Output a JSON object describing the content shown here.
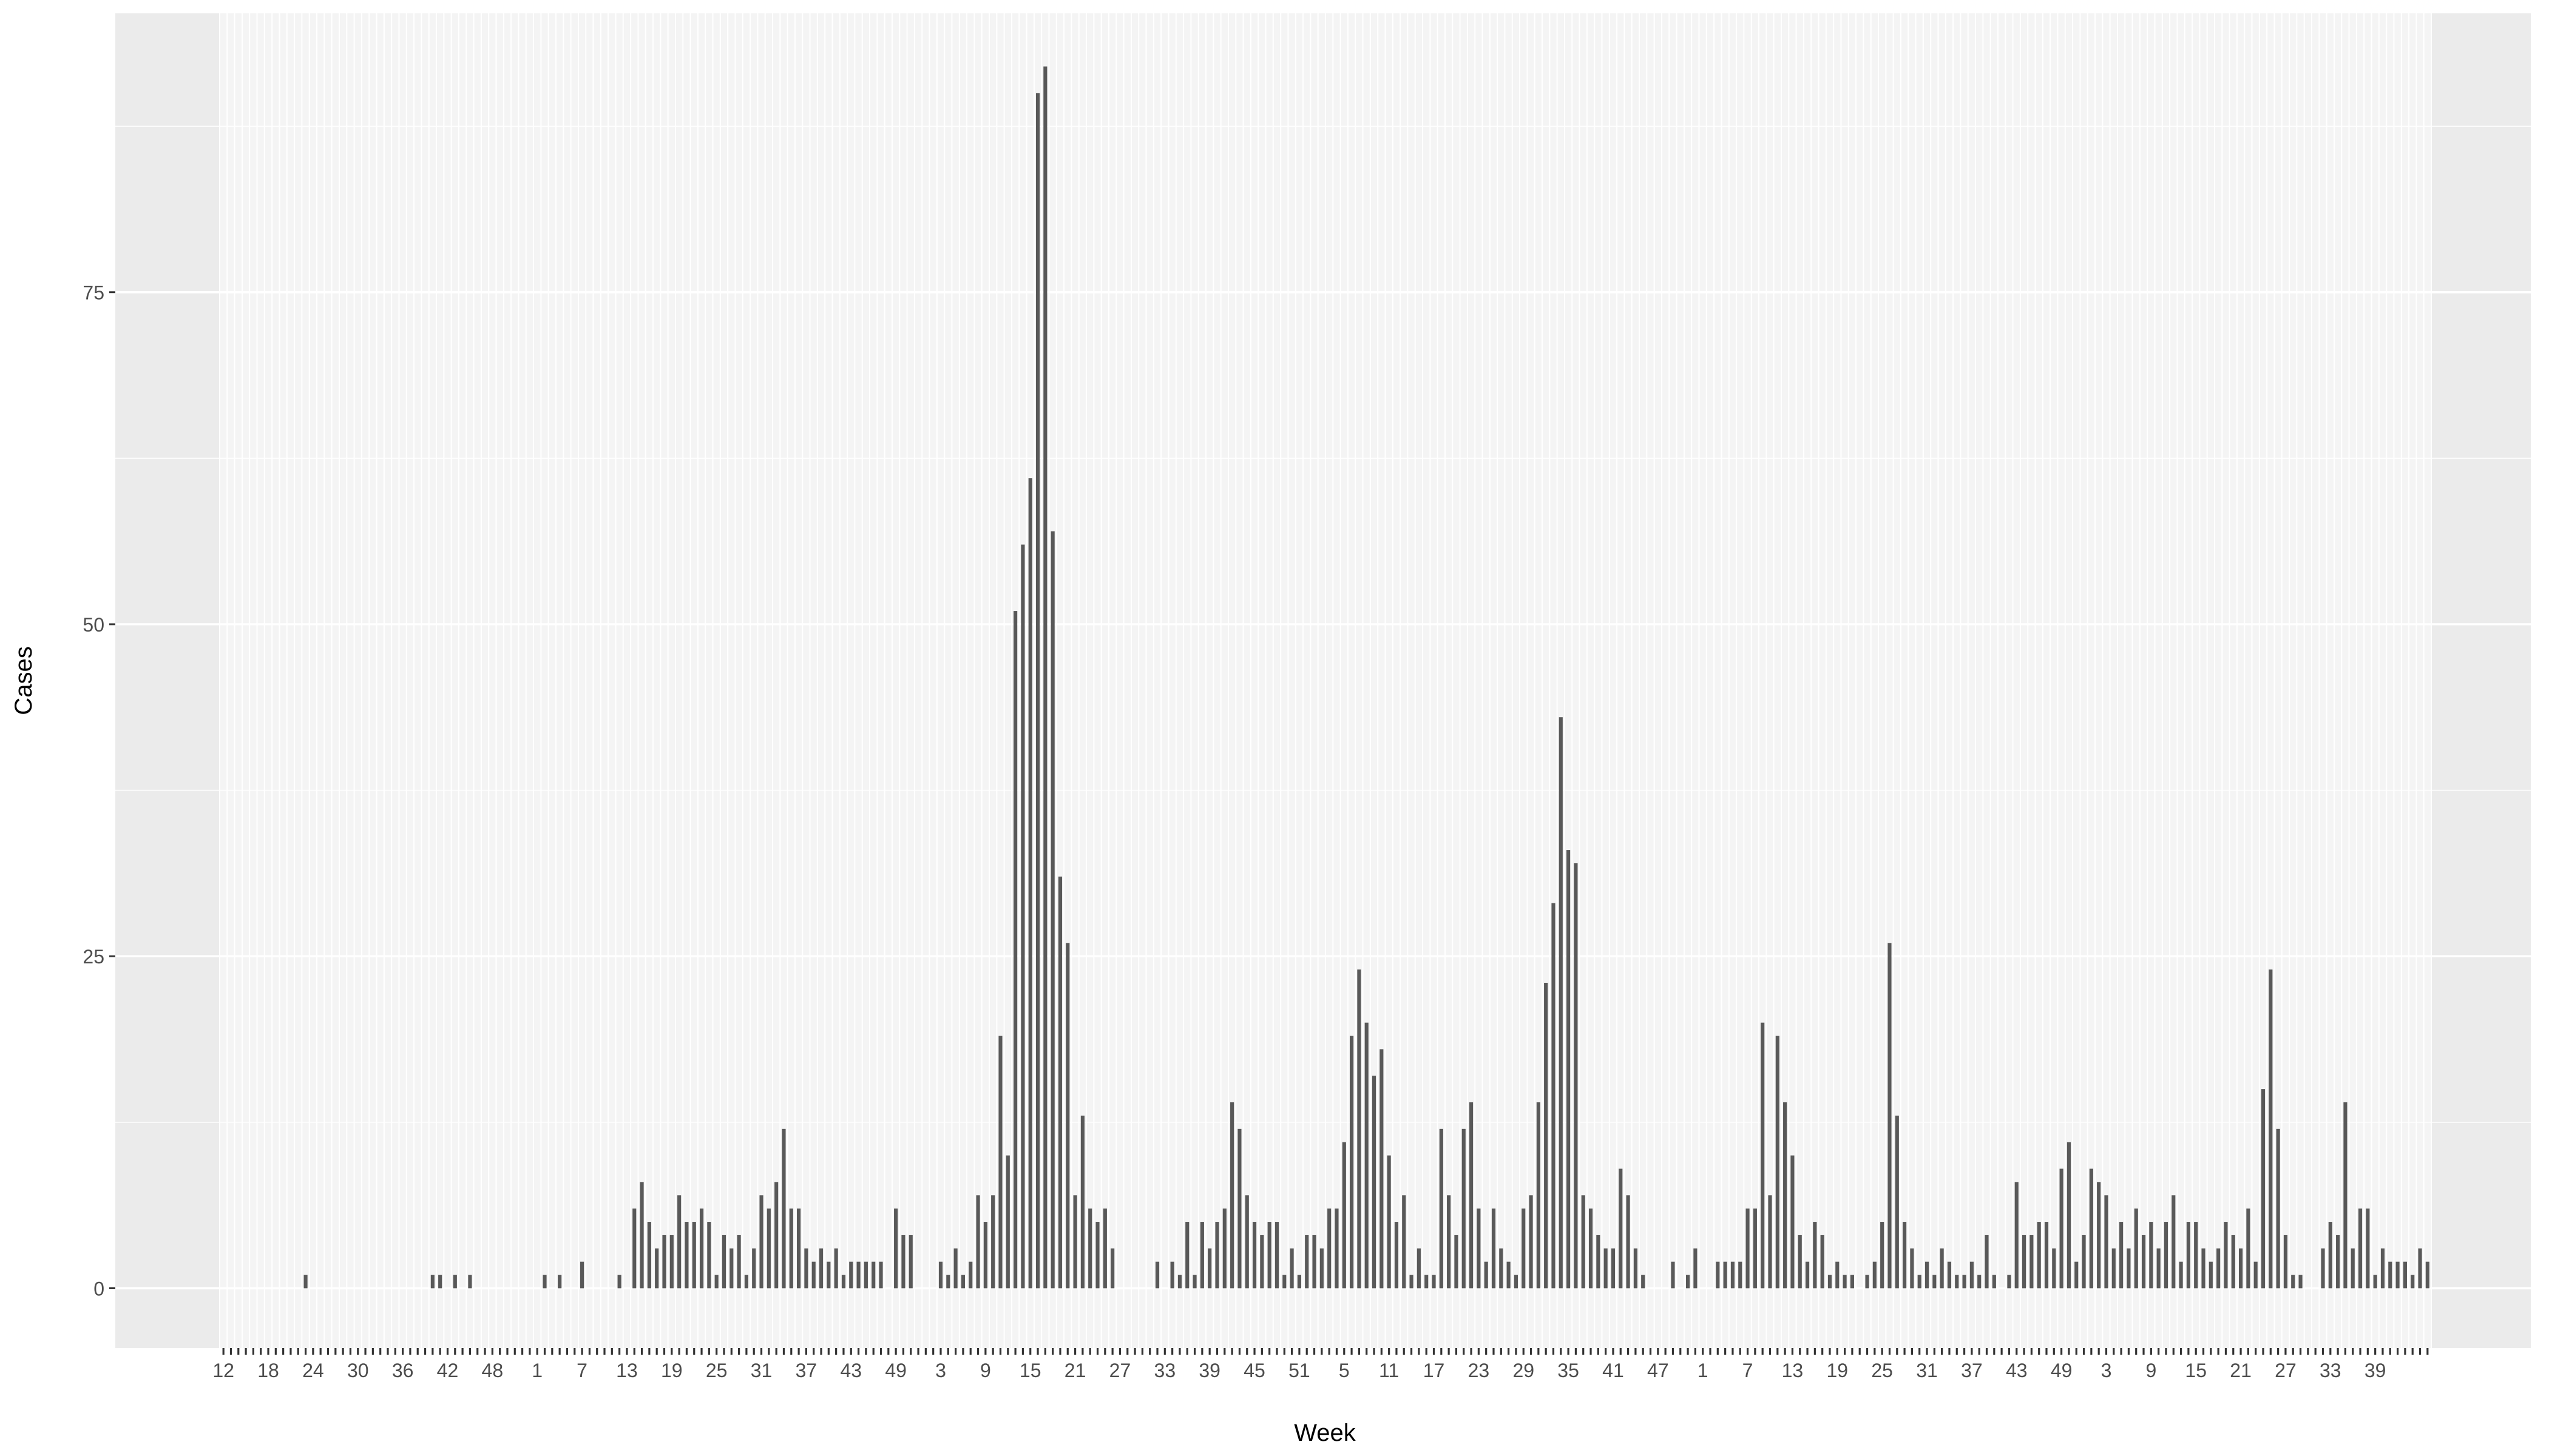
{
  "chart_data": {
    "type": "bar",
    "xlabel": "Week",
    "ylabel": "Cases",
    "ylim": [
      -4.5,
      96
    ],
    "yticks": [
      0,
      25,
      50,
      75
    ],
    "xtick_labels": [
      "12",
      "18",
      "24",
      "30",
      "36",
      "42",
      "48",
      "1",
      "7",
      "13",
      "19",
      "25",
      "31",
      "37",
      "43",
      "49",
      "3",
      "9",
      "15",
      "21",
      "27",
      "33",
      "39",
      "45",
      "51",
      "5",
      "11",
      "17",
      "23",
      "29",
      "35",
      "41",
      "47",
      "1",
      "7",
      "13",
      "19",
      "25",
      "31",
      "37",
      "43",
      "49",
      "3",
      "9",
      "15",
      "21",
      "27",
      "33",
      "39"
    ],
    "first_week": 12,
    "grid": true,
    "values": [
      0,
      0,
      0,
      0,
      0,
      0,
      0,
      0,
      0,
      0,
      0,
      1,
      0,
      0,
      0,
      0,
      0,
      0,
      0,
      0,
      0,
      0,
      0,
      0,
      0,
      0,
      0,
      0,
      1,
      1,
      0,
      1,
      0,
      1,
      0,
      0,
      0,
      0,
      0,
      0,
      0,
      0,
      0,
      1,
      0,
      1,
      0,
      0,
      2,
      0,
      0,
      0,
      0,
      1,
      0,
      6,
      8,
      5,
      3,
      4,
      4,
      7,
      5,
      5,
      6,
      5,
      1,
      4,
      3,
      4,
      1,
      3,
      7,
      6,
      8,
      12,
      6,
      6,
      3,
      2,
      3,
      2,
      3,
      1,
      2,
      2,
      2,
      2,
      2,
      0,
      6,
      4,
      4,
      0,
      0,
      0,
      2,
      1,
      3,
      1,
      2,
      7,
      5,
      7,
      19,
      10,
      51,
      56,
      61,
      90,
      92,
      57,
      31,
      26,
      7,
      13,
      6,
      5,
      6,
      3,
      0,
      0,
      0,
      0,
      0,
      2,
      0,
      2,
      1,
      5,
      1,
      5,
      3,
      5,
      6,
      14,
      12,
      7,
      5,
      4,
      5,
      5,
      1,
      3,
      1,
      4,
      4,
      3,
      6,
      6,
      11,
      19,
      24,
      20,
      16,
      18,
      10,
      5,
      7,
      1,
      3,
      1,
      1,
      12,
      7,
      4,
      12,
      14,
      6,
      2,
      6,
      3,
      2,
      1,
      6,
      7,
      14,
      23,
      29,
      43,
      33,
      32,
      7,
      6,
      4,
      3,
      3,
      9,
      7,
      3,
      1,
      0,
      0,
      0,
      2,
      0,
      1,
      3,
      0,
      0,
      2,
      2,
      2,
      2,
      6,
      6,
      20,
      7,
      19,
      14,
      10,
      4,
      2,
      5,
      4,
      1,
      2,
      1,
      1,
      0,
      1,
      2,
      5,
      26,
      13,
      5,
      3,
      1,
      2,
      1,
      3,
      2,
      1,
      1,
      2,
      1,
      4,
      1,
      0,
      1,
      8,
      4,
      4,
      5,
      5,
      3,
      9,
      11,
      2,
      4,
      9,
      8,
      7,
      3,
      5,
      3,
      6,
      4,
      5,
      3,
      5,
      7,
      2,
      5,
      5,
      3,
      2,
      3,
      5,
      4,
      3,
      6,
      2,
      15,
      24,
      12,
      4,
      1,
      1,
      0,
      0,
      3,
      5,
      4,
      14,
      3,
      6,
      6,
      1,
      3,
      2,
      2,
      2,
      1,
      3,
      2
    ]
  }
}
